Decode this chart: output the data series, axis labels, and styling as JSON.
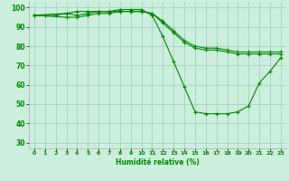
{
  "xlabel": "Humidité relative (%)",
  "background_color": "#cceedd",
  "grid_color": "#99ccbb",
  "line_color": "#008800",
  "xlim": [
    -0.5,
    23.5
  ],
  "ylim": [
    27,
    103
  ],
  "yticks": [
    30,
    40,
    50,
    60,
    70,
    80,
    90,
    100
  ],
  "xticks": [
    0,
    1,
    2,
    3,
    4,
    5,
    6,
    7,
    8,
    9,
    10,
    11,
    12,
    13,
    14,
    15,
    16,
    17,
    18,
    19,
    20,
    21,
    22,
    23
  ],
  "series": [
    {
      "x": [
        0,
        1,
        2,
        3,
        4,
        5,
        6,
        7,
        8,
        9,
        10,
        11,
        12,
        13,
        14,
        15,
        16,
        17,
        18,
        19,
        20,
        21,
        22,
        23
      ],
      "y": [
        96,
        96,
        96,
        97,
        96,
        97,
        98,
        98,
        99,
        99,
        99,
        96,
        85,
        72,
        59,
        46,
        45,
        45,
        45,
        46,
        49,
        61,
        67,
        74
      ],
      "markers_at": [
        0,
        1,
        2,
        3,
        4,
        5,
        6,
        7,
        8,
        9,
        10,
        11,
        12,
        13,
        14,
        15,
        16,
        17,
        18,
        19,
        20,
        21,
        22,
        23
      ]
    },
    {
      "x": [
        0,
        3,
        4,
        5,
        6,
        7,
        8,
        9,
        10,
        11,
        12,
        13,
        14,
        15,
        16,
        17,
        18,
        19,
        20,
        21,
        22,
        23
      ],
      "y": [
        96,
        97,
        98,
        98,
        98,
        98,
        98,
        98,
        98,
        97,
        92,
        87,
        82,
        79,
        78,
        78,
        77,
        76,
        76,
        76,
        76,
        76
      ],
      "markers_at": [
        0,
        3,
        4,
        5,
        6,
        7,
        8,
        9,
        10,
        11,
        12,
        13,
        14,
        15,
        16,
        17,
        18,
        19,
        20,
        21,
        22,
        23
      ]
    },
    {
      "x": [
        0,
        3,
        4,
        5,
        6,
        7,
        8,
        9,
        10,
        11,
        12,
        13,
        14,
        15,
        16,
        17,
        18,
        19,
        20,
        21,
        22,
        23
      ],
      "y": [
        96,
        95,
        95,
        96,
        97,
        97,
        98,
        98,
        98,
        97,
        93,
        88,
        83,
        80,
        79,
        79,
        78,
        77,
        77,
        77,
        77,
        77
      ],
      "markers_at": [
        0,
        3,
        4,
        5,
        6,
        7,
        8,
        9,
        10,
        11,
        12,
        13,
        14,
        15,
        16,
        17,
        18,
        19,
        20,
        21,
        22,
        23
      ]
    }
  ]
}
